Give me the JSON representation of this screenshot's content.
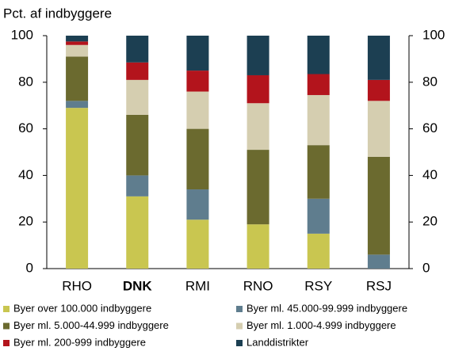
{
  "chart_data": {
    "type": "stacked_bar",
    "y_axis_label": "Pct. af indbyggere",
    "categories": [
      "RHO",
      "DNK",
      "RMI",
      "RNO",
      "RSY",
      "RSJ"
    ],
    "highlight_category": 1,
    "series": [
      {
        "name": "Byer over 100.000 indbyggere",
        "color": "#c9c650",
        "values": [
          69,
          31,
          21,
          19,
          15,
          0
        ]
      },
      {
        "name": "Byer ml. 45.000-99.999 indbyggere",
        "color": "#5f7d8e",
        "values": [
          3,
          9,
          13,
          0,
          15,
          6
        ]
      },
      {
        "name": "Byer ml. 5.000-44.999 indbyggere",
        "color": "#6b6a2f",
        "values": [
          19,
          26,
          26,
          32,
          23,
          42
        ]
      },
      {
        "name": "Byer ml. 1.000-4.999 indbyggere",
        "color": "#d5ceb0",
        "values": [
          5,
          15,
          16,
          20,
          21.5,
          24
        ]
      },
      {
        "name": "Byer ml. 200-999 indbyggere",
        "color": "#b3141c",
        "values": [
          1.5,
          7.5,
          9,
          12,
          9,
          9
        ]
      },
      {
        "name": "Landdistrikter",
        "color": "#1c3f52",
        "values": [
          2.5,
          11.5,
          15,
          17,
          16.5,
          19
        ]
      }
    ],
    "ylim": [
      0,
      100
    ],
    "yticks": [
      0,
      20,
      40,
      60,
      80,
      100
    ],
    "y2lim": [
      0,
      100
    ],
    "y2ticks": [
      0,
      20,
      40,
      60,
      80,
      100
    ]
  }
}
